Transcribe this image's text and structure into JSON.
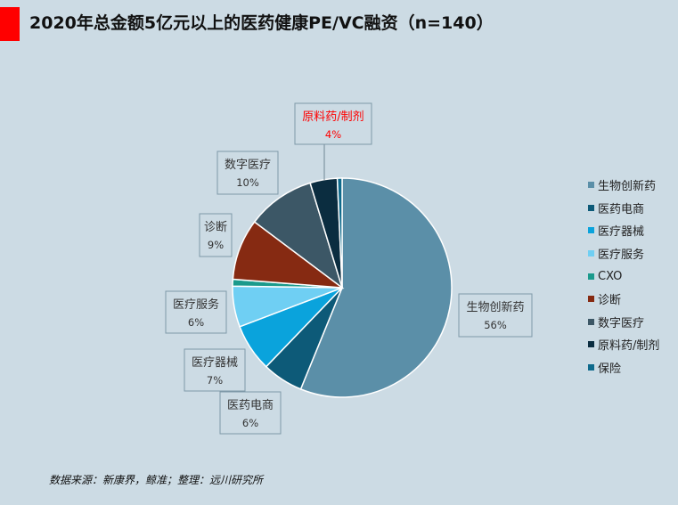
{
  "title": "2020年总金额5亿元以上的医药健康PE/VC融资（n=140）",
  "source": "数据来源：新康界，鲸准；整理：远川研究所",
  "chart_data": {
    "type": "pie",
    "title": "2020年总金额5亿元以上的医药健康PE/VC融资（n=140）",
    "legend_position": "right",
    "slices": [
      {
        "name": "生物创新药",
        "value": 56,
        "label": "56%",
        "color": "#5b8fa8"
      },
      {
        "name": "医药电商",
        "value": 6,
        "label": "6%",
        "color": "#0d5a78"
      },
      {
        "name": "医疗器械",
        "value": 7,
        "label": "7%",
        "color": "#0aa3dc"
      },
      {
        "name": "医疗服务",
        "value": 6,
        "label": "6%",
        "color": "#6fcff3"
      },
      {
        "name": "CXO",
        "value": 1,
        "label": "",
        "color": "#1a9a8c"
      },
      {
        "name": "诊断",
        "value": 9,
        "label": "9%",
        "color": "#862a12"
      },
      {
        "name": "数字医疗",
        "value": 10,
        "label": "10%",
        "color": "#3c5766"
      },
      {
        "name": "原料药/制剂",
        "value": 4,
        "label": "4%",
        "color": "#0b2d40",
        "label_color": "#ff0000"
      },
      {
        "name": "保险",
        "value": 0.7,
        "label": "",
        "color": "#0e6a8c"
      }
    ]
  }
}
